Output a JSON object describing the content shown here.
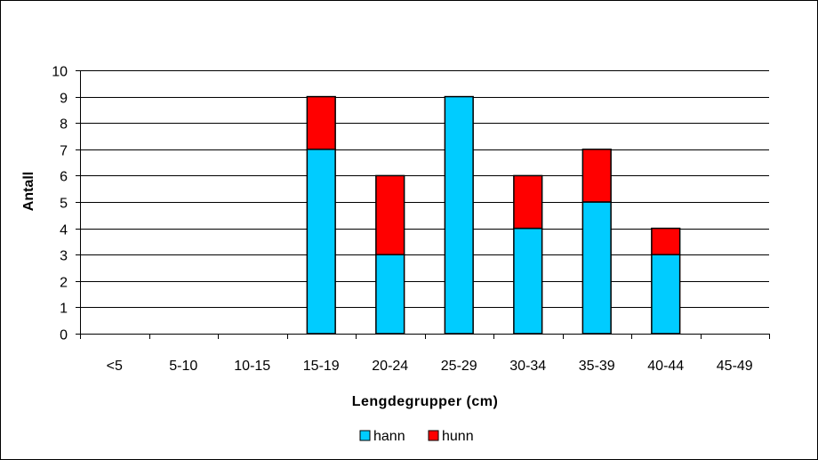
{
  "chart_data": {
    "type": "bar",
    "stacked": true,
    "categories": [
      "<5",
      "5-10",
      "10-15",
      "15-19",
      "20-24",
      "25-29",
      "30-34",
      "35-39",
      "40-44",
      "45-49"
    ],
    "series": [
      {
        "name": "hann",
        "color": "#00ccff",
        "values": [
          0,
          0,
          0,
          7,
          3,
          9,
          4,
          5,
          3,
          0
        ]
      },
      {
        "name": "hunn",
        "color": "#ff0000",
        "values": [
          0,
          0,
          0,
          2,
          3,
          0,
          2,
          2,
          1,
          0
        ]
      }
    ],
    "title": "",
    "xlabel": "Lengdegrupper (cm)",
    "ylabel": "Antall",
    "ylim": [
      0,
      10
    ],
    "yticks": [
      0,
      1,
      2,
      3,
      4,
      5,
      6,
      7,
      8,
      9,
      10
    ],
    "grid": true,
    "legend": "bottom"
  }
}
